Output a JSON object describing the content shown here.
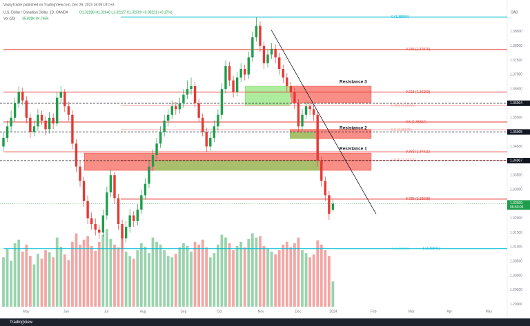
{
  "header": {
    "publisher": "VasilyTrader published on TradingView.com, Dec 29, 2023 16:09 UTC+3",
    "symbol": "U.S. Dollar / Canadian Dollar, 1D, OANDA",
    "ohlc": "O1.32288 H1.32646 L1.32227 C1.32509 +0.00221 (+0.17%)",
    "vol_label": "Vol (20)",
    "vol_values": "35.829K 84.795K",
    "currency": "CAD"
  },
  "footer": {
    "brand": "TradingView"
  },
  "chart_data": {
    "type": "candlestick",
    "up_color": "#1e9e4a",
    "down_color": "#e53935",
    "xlim": [
      -0.9,
      131.5
    ],
    "ylim": [
      1.2892,
      1.3924
    ],
    "vlim": [
      0,
      420
    ],
    "xticks": [
      {
        "value": 5.9,
        "label": "May"
      },
      {
        "value": 16.4,
        "label": "Jun"
      },
      {
        "value": 26.8,
        "label": "Jul"
      },
      {
        "value": 36.4,
        "label": "Aug"
      },
      {
        "value": 47,
        "label": "Sep"
      },
      {
        "value": 56.4,
        "label": "Oct"
      },
      {
        "value": 67.2,
        "label": "Nov"
      },
      {
        "value": 76.9,
        "label": "Dec"
      },
      {
        "value": 86.1,
        "label": "2024"
      },
      {
        "value": 96.6,
        "label": "Feb"
      },
      {
        "value": 106.5,
        "label": "Mar"
      },
      {
        "value": 116.4,
        "label": "Apr"
      },
      {
        "value": 126.7,
        "label": "May"
      }
    ],
    "yticks": [
      {
        "value": 1.385,
        "label": "1.38500"
      },
      {
        "value": 1.38,
        "label": "1.38000"
      },
      {
        "value": 1.375,
        "label": "1.37500"
      },
      {
        "value": 1.37,
        "label": "1.37000"
      },
      {
        "value": 1.365,
        "label": "1.36500"
      },
      {
        "value": 1.355,
        "label": "1.35500"
      },
      {
        "value": 1.345,
        "label": "1.34500"
      },
      {
        "value": 1.335,
        "label": "1.33500"
      },
      {
        "value": 1.33,
        "label": "1.33000"
      },
      {
        "value": 1.32,
        "label": "1.32000"
      },
      {
        "value": 1.315,
        "label": "1.31500"
      },
      {
        "value": 1.31,
        "label": "1.31000"
      },
      {
        "value": 1.305,
        "label": "1.30500"
      },
      {
        "value": 1.3,
        "label": "1.30000"
      },
      {
        "value": 1.295,
        "label": "1.29500"
      },
      {
        "value": 1.29,
        "label": "1.29000"
      }
    ],
    "candles": [
      [
        1.345,
        1.35,
        1.3435,
        1.348
      ],
      [
        1.348,
        1.354,
        1.3465,
        1.352
      ],
      [
        1.352,
        1.3575,
        1.35,
        1.355
      ],
      [
        1.355,
        1.362,
        1.3535,
        1.36
      ],
      [
        1.36,
        1.366,
        1.3585,
        1.364
      ],
      [
        1.364,
        1.3655,
        1.3595,
        1.361
      ],
      [
        1.361,
        1.3625,
        1.353,
        1.355
      ],
      [
        1.355,
        1.3565,
        1.348,
        1.35
      ],
      [
        1.35,
        1.354,
        1.3485,
        1.352
      ],
      [
        1.352,
        1.358,
        1.3505,
        1.356
      ],
      [
        1.356,
        1.3575,
        1.3525,
        1.354
      ],
      [
        1.354,
        1.3555,
        1.349,
        1.351
      ],
      [
        1.351,
        1.357,
        1.3495,
        1.355
      ],
      [
        1.355,
        1.3565,
        1.351,
        1.353
      ],
      [
        1.353,
        1.364,
        1.352,
        1.362
      ],
      [
        1.362,
        1.366,
        1.36,
        1.364
      ],
      [
        1.364,
        1.365,
        1.357,
        1.359
      ],
      [
        1.359,
        1.3605,
        1.354,
        1.356
      ],
      [
        1.356,
        1.3575,
        1.344,
        1.346
      ],
      [
        1.346,
        1.3475,
        1.336,
        1.338
      ],
      [
        1.338,
        1.34,
        1.331,
        1.333
      ],
      [
        1.333,
        1.3345,
        1.324,
        1.326
      ],
      [
        1.326,
        1.328,
        1.318,
        1.32
      ],
      [
        1.32,
        1.322,
        1.316,
        1.318
      ],
      [
        1.318,
        1.32,
        1.314,
        1.316
      ],
      [
        1.316,
        1.3175,
        1.313,
        1.315
      ],
      [
        1.315,
        1.323,
        1.3135,
        1.321
      ],
      [
        1.321,
        1.331,
        1.3195,
        1.329
      ],
      [
        1.329,
        1.337,
        1.3275,
        1.335
      ],
      [
        1.335,
        1.336,
        1.325,
        1.327
      ],
      [
        1.327,
        1.3285,
        1.316,
        1.318
      ],
      [
        1.318,
        1.3195,
        1.3093,
        1.313
      ],
      [
        1.313,
        1.319,
        1.3115,
        1.317
      ],
      [
        1.317,
        1.323,
        1.315,
        1.321
      ],
      [
        1.321,
        1.3225,
        1.317,
        1.319
      ],
      [
        1.319,
        1.325,
        1.3175,
        1.323
      ],
      [
        1.323,
        1.33,
        1.3215,
        1.328
      ],
      [
        1.328,
        1.334,
        1.3265,
        1.332
      ],
      [
        1.332,
        1.34,
        1.3305,
        1.338
      ],
      [
        1.338,
        1.344,
        1.3365,
        1.342
      ],
      [
        1.342,
        1.348,
        1.3405,
        1.346
      ],
      [
        1.346,
        1.352,
        1.3445,
        1.35
      ],
      [
        1.35,
        1.356,
        1.3485,
        1.354
      ],
      [
        1.354,
        1.358,
        1.352,
        1.356
      ],
      [
        1.356,
        1.361,
        1.3545,
        1.359
      ],
      [
        1.359,
        1.3605,
        1.356,
        1.358
      ],
      [
        1.358,
        1.362,
        1.3565,
        1.36
      ],
      [
        1.36,
        1.365,
        1.3585,
        1.363
      ],
      [
        1.363,
        1.368,
        1.3615,
        1.365
      ],
      [
        1.365,
        1.369,
        1.363,
        1.366
      ],
      [
        1.366,
        1.3675,
        1.3585,
        1.36
      ],
      [
        1.36,
        1.3615,
        1.3535,
        1.355
      ],
      [
        1.355,
        1.3565,
        1.3485,
        1.35
      ],
      [
        1.35,
        1.3515,
        1.343,
        1.345
      ],
      [
        1.345,
        1.35,
        1.3435,
        1.348
      ],
      [
        1.348,
        1.354,
        1.3465,
        1.352
      ],
      [
        1.352,
        1.358,
        1.3505,
        1.356
      ],
      [
        1.356,
        1.367,
        1.3545,
        1.365
      ],
      [
        1.365,
        1.375,
        1.3635,
        1.373
      ],
      [
        1.373,
        1.3745,
        1.366,
        1.368
      ],
      [
        1.368,
        1.3695,
        1.362,
        1.364
      ],
      [
        1.364,
        1.371,
        1.3625,
        1.369
      ],
      [
        1.369,
        1.374,
        1.3675,
        1.372
      ],
      [
        1.372,
        1.3735,
        1.368,
        1.37
      ],
      [
        1.37,
        1.378,
        1.3685,
        1.376
      ],
      [
        1.376,
        1.385,
        1.3745,
        1.383
      ],
      [
        1.383,
        1.39,
        1.3815,
        1.387
      ],
      [
        1.387,
        1.3885,
        1.378,
        1.38
      ],
      [
        1.38,
        1.3815,
        1.372,
        1.374
      ],
      [
        1.374,
        1.379,
        1.3725,
        1.377
      ],
      [
        1.377,
        1.381,
        1.3755,
        1.379
      ],
      [
        1.379,
        1.3805,
        1.374,
        1.376
      ],
      [
        1.376,
        1.3775,
        1.37,
        1.372
      ],
      [
        1.372,
        1.3735,
        1.367,
        1.369
      ],
      [
        1.369,
        1.3705,
        1.364,
        1.366
      ],
      [
        1.366,
        1.3675,
        1.362,
        1.364
      ],
      [
        1.364,
        1.3655,
        1.358,
        1.36
      ],
      [
        1.36,
        1.3615,
        1.35,
        1.352
      ],
      [
        1.352,
        1.358,
        1.3505,
        1.356
      ],
      [
        1.356,
        1.361,
        1.3545,
        1.359
      ],
      [
        1.359,
        1.3605,
        1.356,
        1.358
      ],
      [
        1.358,
        1.3595,
        1.354,
        1.356
      ],
      [
        1.356,
        1.3575,
        1.338,
        1.34
      ],
      [
        1.34,
        1.3415,
        1.331,
        1.333
      ],
      [
        1.333,
        1.3345,
        1.326,
        1.328
      ],
      [
        1.328,
        1.3295,
        1.3195,
        1.3215
      ],
      [
        1.32288,
        1.32646,
        1.32227,
        1.32509
      ]
    ],
    "volume": [
      70,
      82,
      65,
      90,
      95,
      78,
      88,
      72,
      60,
      75,
      68,
      80,
      77,
      70,
      98,
      85,
      74,
      66,
      92,
      104,
      88,
      95,
      100,
      86,
      79,
      92,
      102,
      110,
      96,
      88,
      84,
      106,
      78,
      72,
      68,
      80,
      90,
      85,
      76,
      98,
      92,
      88,
      80,
      72,
      70,
      75,
      84,
      90,
      86,
      78,
      92,
      88,
      95,
      84,
      70,
      76,
      88,
      102,
      98,
      90,
      80,
      86,
      92,
      84,
      96,
      104,
      98,
      100,
      86,
      82,
      78,
      74,
      80,
      88,
      92,
      84,
      90,
      98,
      80,
      76,
      70,
      74,
      94,
      88,
      80,
      72,
      35.829
    ],
    "levels": [
      {
        "label": "0 (1.39004)",
        "value": 1.39004,
        "color": "#00bcd4",
        "start": 30.6
      },
      {
        "label": "0.786 (1.37875)",
        "value": 1.37875,
        "color": "#e53935",
        "start": 0
      },
      {
        "label": "0.618 (1.36393)",
        "value": 1.36393,
        "color": "#e53935",
        "start": 0
      },
      {
        "label": "0.5 (1.35352)",
        "value": 1.35352,
        "color": "#e53935",
        "start": 0
      },
      {
        "label": "0.382 (1.34311)",
        "value": 1.34311,
        "color": "#e53935",
        "start": 0
      },
      {
        "label": "0.786 (1.32668)",
        "value": 1.32668,
        "color": "#e53935",
        "start": 30.6
      },
      {
        "label": "1 (1.30941)",
        "value": 1.30941,
        "color": "#00bcd4",
        "start": 0
      }
    ],
    "ghost_levels": [
      {
        "label": "0.382 (1.35925)",
        "value": 1.35925,
        "color": "#e53935",
        "start": 30.6
      },
      {
        "label": "0.5 (1.35075)",
        "value": 1.35075,
        "color": "#e53935",
        "start": 30.6
      },
      {
        "label": "0.618 (1.34023)",
        "value": 1.34023,
        "color": "#e53935",
        "start": 30.6
      },
      {
        "label": "1 (1.30942)",
        "value": 1.30942,
        "color": "#00bcd4",
        "start": 30.6
      }
    ],
    "price_lines": [
      1.36004,
      1.35005,
      1.34007
    ],
    "last_price": 1.32509,
    "countdown": "06:50:03",
    "zones": [
      {
        "from": 75.1,
        "to": 96,
        "low": 1.3602,
        "high": 1.366,
        "color": "#f44336"
      },
      {
        "from": 63.1,
        "to": 74.8,
        "low": 1.3593,
        "high": 1.366,
        "color": "#76e05c"
      },
      {
        "from": 74.8,
        "to": 96,
        "low": 1.3477,
        "high": 1.3509,
        "color": "#f44336"
      },
      {
        "from": 74.8,
        "to": 81.1,
        "low": 1.3477,
        "high": 1.35,
        "color": "#76e05c"
      },
      {
        "from": 21.1,
        "to": 96,
        "low": 1.3367,
        "high": 1.3427,
        "color": "#f44336"
      },
      {
        "from": 39.6,
        "to": 82.3,
        "low": 1.3367,
        "high": 1.3401,
        "color": "#76e05c"
      }
    ],
    "zone_labels": [
      "Resistance 3",
      "Resistance 2",
      "Resistance 1"
    ],
    "trendline": {
      "x": [
        69.9,
        97.3
      ],
      "y": [
        1.3856,
        1.3214
      ]
    }
  }
}
